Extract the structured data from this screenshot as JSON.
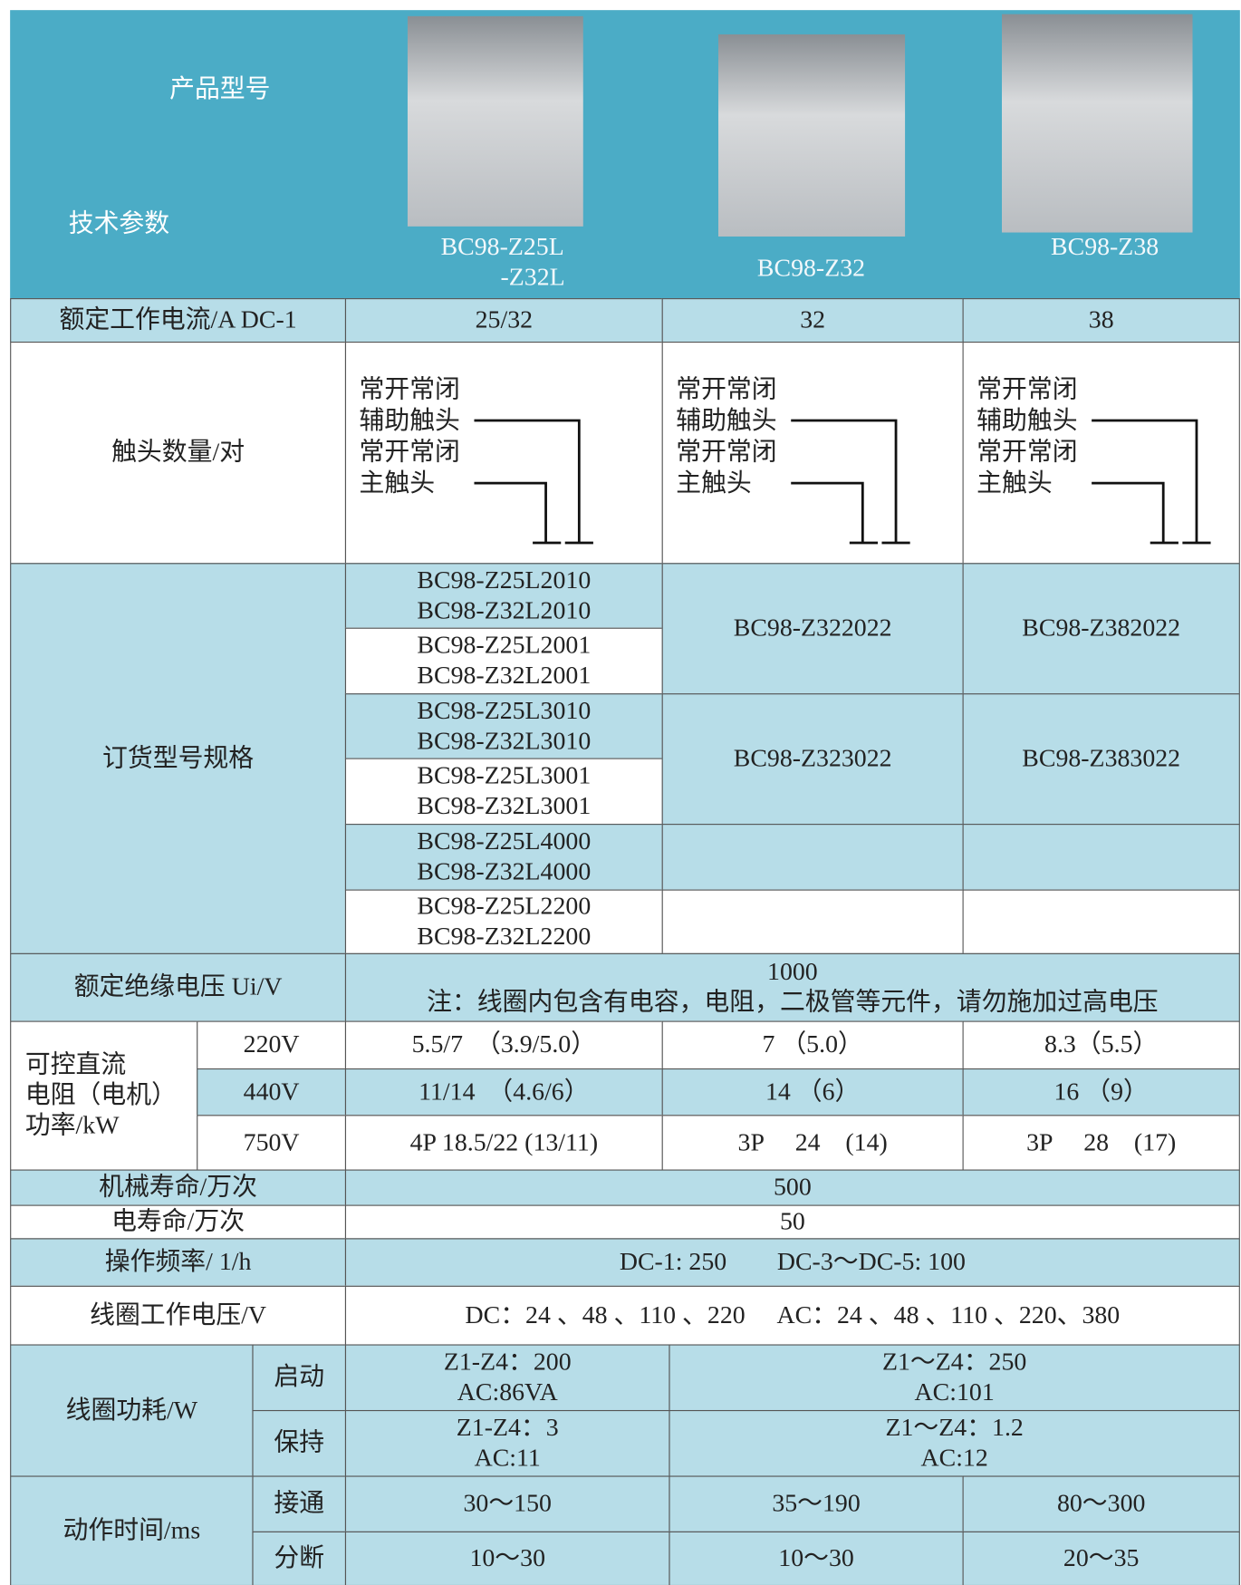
{
  "header": {
    "product_model": "产品型号",
    "tech_params": "技术参数",
    "models": [
      [
        "BC98-Z25L",
        "-Z32L"
      ],
      [
        "BC98-Z32"
      ],
      [
        "BC98-Z38"
      ]
    ]
  },
  "rated_current": {
    "label": "额定工作电流/A DC-1",
    "values": [
      "25/32",
      "32",
      "38"
    ]
  },
  "contacts": {
    "label": "触头数量/对",
    "lines": [
      "常开常闭",
      "辅助触头",
      "常开常闭",
      "主触头"
    ]
  },
  "order_models": {
    "label": "订货型号规格",
    "col1": [
      [
        "BC98-Z25L2010",
        "BC98-Z32L2010"
      ],
      [
        "BC98-Z25L2001",
        "BC98-Z32L2001"
      ],
      [
        "BC98-Z25L3010",
        "BC98-Z32L3010"
      ],
      [
        "BC98-Z25L3001",
        "BC98-Z32L3001"
      ],
      [
        "BC98-Z25L4000",
        "BC98-Z32L4000"
      ],
      [
        "BC98-Z25L2200",
        "BC98-Z32L2200"
      ]
    ],
    "col2": [
      "BC98-Z322022",
      "BC98-Z323022"
    ],
    "col3": [
      "BC98-Z382022",
      "BC98-Z383022"
    ]
  },
  "insulation": {
    "label": "额定绝缘电压 Ui/V",
    "value": "1000",
    "note": "注：线圈内包含有电容，电阻，二极管等元件，请勿施加过高电压"
  },
  "dc_power": {
    "label": [
      "可控直流",
      "电阻（电机）",
      "功率/kW"
    ],
    "rows": [
      {
        "voltage": "220V",
        "values": [
          "5.5/7　（3.9/5.0）",
          "7 （5.0）",
          "8.3（5.5）"
        ]
      },
      {
        "voltage": "440V",
        "values": [
          "11/14　（4.6/6）",
          "14 （6）",
          "16 （9）"
        ]
      },
      {
        "voltage": "750V",
        "values": [
          "4P 18.5/22 (13/11)",
          "3P　 24　(14)",
          "3P　 28　(17)"
        ]
      }
    ]
  },
  "mech_life": {
    "label": "机械寿命/万次",
    "value": "500"
  },
  "elec_life": {
    "label": "电寿命/万次",
    "value": "50"
  },
  "op_freq": {
    "label": "操作频率/ 1/h",
    "value": "DC-1: 250　　DC-3～DC-5: 100"
  },
  "coil_voltage": {
    "label": "线圈工作电压/V",
    "value": "DC：24 、48 、110 、220　 AC：24 、48 、110 、220、380"
  },
  "coil_power": {
    "label": "线圈功耗/W",
    "rows": [
      {
        "name": "启动",
        "values": [
          [
            "Z1-Z4：200",
            "AC:86VA"
          ],
          [
            "Z1～Z4：250",
            "AC:101"
          ]
        ]
      },
      {
        "name": "保持",
        "values": [
          [
            "Z1-Z4：3",
            "AC:11"
          ],
          [
            "Z1～Z4：1.2",
            "AC:12"
          ]
        ]
      }
    ]
  },
  "action_time": {
    "label": "动作时间/ms",
    "rows": [
      {
        "name": "接通",
        "values": [
          "30～150",
          "35～190",
          "80～300"
        ]
      },
      {
        "name": "分断",
        "values": [
          "10～30",
          "10～30",
          "20～35"
        ]
      }
    ]
  }
}
